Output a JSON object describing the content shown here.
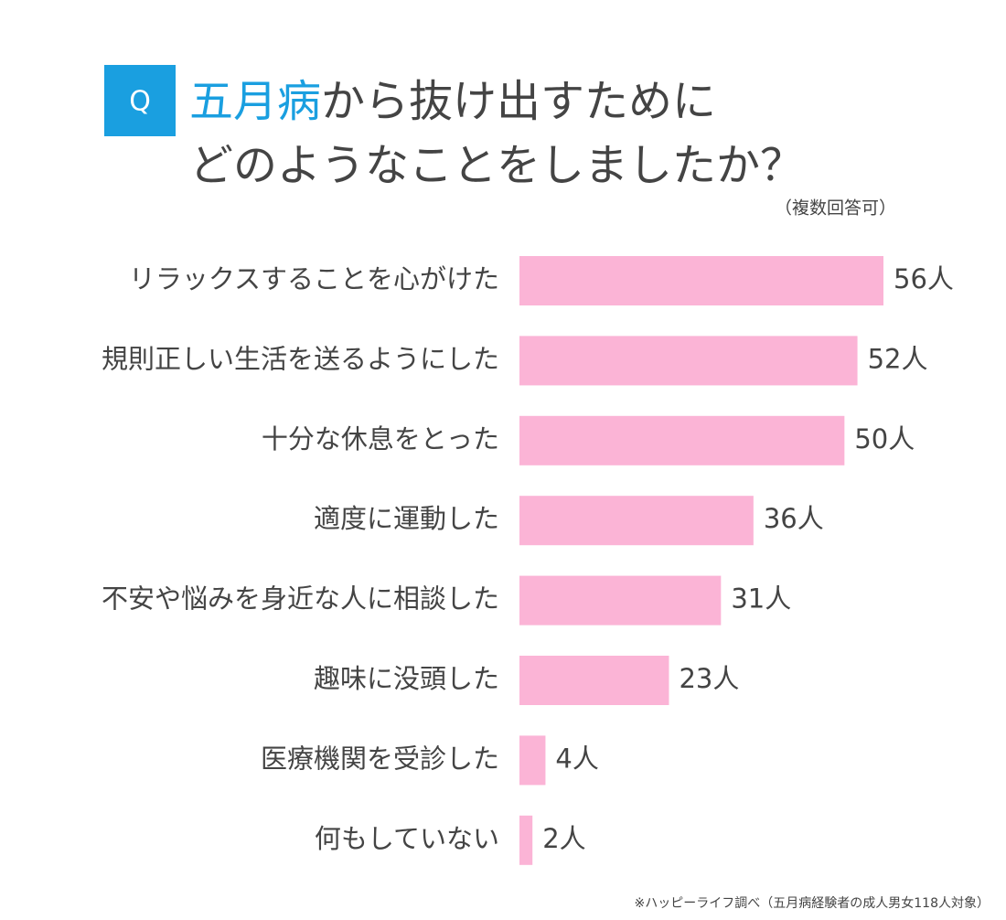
{
  "chart_data": {
    "type": "bar",
    "orientation": "horizontal",
    "badge": "Q",
    "title_highlight": "五月病",
    "title_rest": "から抜け出すために",
    "title_line2": "どのようなことをしましたか？",
    "subtitle": "（複数回答可）",
    "source": "※ハッピーライフ調べ（五月病経験者の成人男女118人対象）",
    "categories": [
      "リラックスすることを心がけた",
      "規則正しい生活を送るようにした",
      "十分な休息をとった",
      "適度に運動した",
      "不安や悩みを身近な人に相談した",
      "趣味に没頭した",
      "医療機関を受診した",
      "何もしていない"
    ],
    "values": [
      56,
      52,
      50,
      36,
      31,
      23,
      4,
      2
    ],
    "value_labels": [
      "56人",
      "52人",
      "50人",
      "36人",
      "31人",
      "23人",
      "4人",
      "2人"
    ],
    "color": "#fbb4d6",
    "accent_color": "#1a9fe0"
  }
}
